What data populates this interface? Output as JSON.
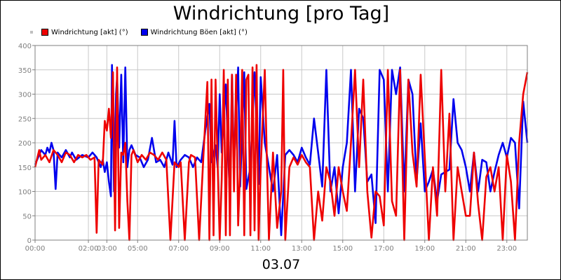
{
  "chart_data": {
    "type": "line",
    "title": "Windrichtung [pro Tag]",
    "date_label": "03.07",
    "ylim": [
      0,
      400
    ],
    "y_ticks": [
      0,
      50,
      100,
      150,
      200,
      250,
      300,
      350,
      400
    ],
    "xlim": [
      0,
      24
    ],
    "x_ticks": [
      {
        "x": 0,
        "label": "00:00"
      },
      {
        "x": 2.6,
        "label": "02:00"
      },
      {
        "x": 3.5,
        "label": "03:00"
      },
      {
        "x": 5,
        "label": "05:00"
      },
      {
        "x": 7,
        "label": "07:00"
      },
      {
        "x": 9,
        "label": "09:00"
      },
      {
        "x": 11,
        "label": "11:00"
      },
      {
        "x": 13,
        "label": "13:00"
      },
      {
        "x": 15,
        "label": "15:00"
      },
      {
        "x": 17,
        "label": "17:00"
      },
      {
        "x": 19,
        "label": "19:00"
      },
      {
        "x": 21,
        "label": "21:00"
      },
      {
        "x": 23,
        "label": "23:00"
      }
    ],
    "grid": true,
    "legend_position": "top-left",
    "series": [
      {
        "name": "Windrichtung Böen [akt] (°)",
        "color": "#0000ee",
        "points": [
          [
            0,
            155
          ],
          [
            0.3,
            185
          ],
          [
            0.5,
            175
          ],
          [
            0.6,
            190
          ],
          [
            0.7,
            180
          ],
          [
            0.8,
            200
          ],
          [
            0.9,
            185
          ],
          [
            1.0,
            105
          ],
          [
            1.1,
            180
          ],
          [
            1.3,
            170
          ],
          [
            1.5,
            185
          ],
          [
            1.7,
            170
          ],
          [
            1.8,
            180
          ],
          [
            2.0,
            165
          ],
          [
            2.3,
            175
          ],
          [
            2.6,
            170
          ],
          [
            2.8,
            180
          ],
          [
            3.0,
            170
          ],
          [
            3.2,
            150
          ],
          [
            3.3,
            165
          ],
          [
            3.4,
            140
          ],
          [
            3.5,
            160
          ],
          [
            3.6,
            120
          ],
          [
            3.7,
            90
          ],
          [
            3.75,
            360
          ],
          [
            3.85,
            100
          ],
          [
            3.95,
            300
          ],
          [
            4.0,
            335
          ],
          [
            4.1,
            190
          ],
          [
            4.2,
            340
          ],
          [
            4.3,
            160
          ],
          [
            4.4,
            355
          ],
          [
            4.5,
            150
          ],
          [
            4.6,
            185
          ],
          [
            4.7,
            195
          ],
          [
            4.9,
            175
          ],
          [
            5.1,
            170
          ],
          [
            5.3,
            150
          ],
          [
            5.5,
            165
          ],
          [
            5.7,
            210
          ],
          [
            5.9,
            160
          ],
          [
            6.1,
            165
          ],
          [
            6.3,
            150
          ],
          [
            6.5,
            180
          ],
          [
            6.7,
            155
          ],
          [
            6.8,
            245
          ],
          [
            6.9,
            150
          ],
          [
            7.1,
            165
          ],
          [
            7.3,
            175
          ],
          [
            7.5,
            170
          ],
          [
            7.7,
            150
          ],
          [
            7.9,
            170
          ],
          [
            8.1,
            160
          ],
          [
            8.3,
            225
          ],
          [
            8.5,
            280
          ],
          [
            8.6,
            160
          ],
          [
            8.8,
            195
          ],
          [
            8.9,
            150
          ],
          [
            9.0,
            300
          ],
          [
            9.1,
            180
          ],
          [
            9.3,
            320
          ],
          [
            9.5,
            80
          ],
          [
            9.6,
            340
          ],
          [
            9.7,
            150
          ],
          [
            9.9,
            355
          ],
          [
            10.0,
            110
          ],
          [
            10.2,
            345
          ],
          [
            10.3,
            105
          ],
          [
            10.5,
            150
          ],
          [
            10.7,
            345
          ],
          [
            10.9,
            115
          ],
          [
            11.0,
            335
          ],
          [
            11.2,
            200
          ],
          [
            11.4,
            150
          ],
          [
            11.6,
            100
          ],
          [
            11.8,
            175
          ],
          [
            12.0,
            10
          ],
          [
            12.2,
            175
          ],
          [
            12.4,
            185
          ],
          [
            12.6,
            175
          ],
          [
            12.8,
            160
          ],
          [
            13.0,
            190
          ],
          [
            13.2,
            170
          ],
          [
            13.4,
            155
          ],
          [
            13.6,
            250
          ],
          [
            13.8,
            180
          ],
          [
            14.0,
            110
          ],
          [
            14.2,
            350
          ],
          [
            14.4,
            100
          ],
          [
            14.6,
            150
          ],
          [
            14.8,
            55
          ],
          [
            15.0,
            150
          ],
          [
            15.2,
            200
          ],
          [
            15.4,
            350
          ],
          [
            15.6,
            100
          ],
          [
            15.8,
            270
          ],
          [
            16.0,
            250
          ],
          [
            16.2,
            120
          ],
          [
            16.4,
            135
          ],
          [
            16.6,
            35
          ],
          [
            16.8,
            350
          ],
          [
            17.0,
            330
          ],
          [
            17.2,
            100
          ],
          [
            17.4,
            350
          ],
          [
            17.6,
            300
          ],
          [
            17.8,
            355
          ],
          [
            18.0,
            100
          ],
          [
            18.2,
            330
          ],
          [
            18.4,
            300
          ],
          [
            18.6,
            120
          ],
          [
            18.8,
            240
          ],
          [
            19.0,
            100
          ],
          [
            19.2,
            120
          ],
          [
            19.4,
            145
          ],
          [
            19.6,
            80
          ],
          [
            19.8,
            135
          ],
          [
            20.0,
            140
          ],
          [
            20.2,
            145
          ],
          [
            20.4,
            290
          ],
          [
            20.6,
            200
          ],
          [
            20.8,
            185
          ],
          [
            21.0,
            150
          ],
          [
            21.2,
            100
          ],
          [
            21.4,
            180
          ],
          [
            21.6,
            100
          ],
          [
            21.8,
            165
          ],
          [
            22.0,
            160
          ],
          [
            22.2,
            100
          ],
          [
            22.4,
            140
          ],
          [
            22.6,
            175
          ],
          [
            22.8,
            200
          ],
          [
            23.0,
            170
          ],
          [
            23.2,
            210
          ],
          [
            23.4,
            200
          ],
          [
            23.6,
            65
          ],
          [
            23.8,
            285
          ],
          [
            24.0,
            200
          ]
        ]
      },
      {
        "name": "Windrichtung [akt] (°)",
        "color": "#ee0000",
        "points": [
          [
            0,
            150
          ],
          [
            0.2,
            185
          ],
          [
            0.3,
            165
          ],
          [
            0.5,
            175
          ],
          [
            0.7,
            160
          ],
          [
            0.9,
            185
          ],
          [
            1.1,
            175
          ],
          [
            1.3,
            160
          ],
          [
            1.5,
            180
          ],
          [
            1.7,
            175
          ],
          [
            1.9,
            160
          ],
          [
            2.1,
            175
          ],
          [
            2.3,
            170
          ],
          [
            2.5,
            175
          ],
          [
            2.7,
            165
          ],
          [
            2.9,
            170
          ],
          [
            3.0,
            15
          ],
          [
            3.1,
            165
          ],
          [
            3.2,
            160
          ],
          [
            3.3,
            155
          ],
          [
            3.4,
            245
          ],
          [
            3.5,
            225
          ],
          [
            3.6,
            270
          ],
          [
            3.7,
            210
          ],
          [
            3.8,
            345
          ],
          [
            3.9,
            20
          ],
          [
            4.0,
            355
          ],
          [
            4.1,
            25
          ],
          [
            4.2,
            180
          ],
          [
            4.3,
            175
          ],
          [
            4.4,
            200
          ],
          [
            4.5,
            80
          ],
          [
            4.6,
            0
          ],
          [
            4.7,
            175
          ],
          [
            4.8,
            185
          ],
          [
            5.0,
            160
          ],
          [
            5.2,
            175
          ],
          [
            5.4,
            165
          ],
          [
            5.6,
            180
          ],
          [
            5.8,
            175
          ],
          [
            6.0,
            165
          ],
          [
            6.2,
            180
          ],
          [
            6.4,
            165
          ],
          [
            6.6,
            0
          ],
          [
            6.8,
            160
          ],
          [
            7.0,
            150
          ],
          [
            7.1,
            160
          ],
          [
            7.3,
            0
          ],
          [
            7.5,
            160
          ],
          [
            7.6,
            175
          ],
          [
            7.8,
            170
          ],
          [
            8.0,
            0
          ],
          [
            8.2,
            165
          ],
          [
            8.4,
            325
          ],
          [
            8.5,
            0
          ],
          [
            8.6,
            330
          ],
          [
            8.7,
            10
          ],
          [
            8.8,
            330
          ],
          [
            8.9,
            160
          ],
          [
            9.0,
            0
          ],
          [
            9.1,
            125
          ],
          [
            9.2,
            350
          ],
          [
            9.3,
            10
          ],
          [
            9.4,
            330
          ],
          [
            9.5,
            10
          ],
          [
            9.6,
            340
          ],
          [
            9.7,
            100
          ],
          [
            9.8,
            340
          ],
          [
            9.9,
            30
          ],
          [
            10.0,
            150
          ],
          [
            10.1,
            350
          ],
          [
            10.2,
            10
          ],
          [
            10.3,
            330
          ],
          [
            10.4,
            340
          ],
          [
            10.5,
            10
          ],
          [
            10.6,
            355
          ],
          [
            10.7,
            20
          ],
          [
            10.8,
            360
          ],
          [
            10.9,
            0
          ],
          [
            11.0,
            150
          ],
          [
            11.2,
            350
          ],
          [
            11.3,
            170
          ],
          [
            11.4,
            0
          ],
          [
            11.6,
            180
          ],
          [
            11.8,
            25
          ],
          [
            12.0,
            100
          ],
          [
            12.1,
            350
          ],
          [
            12.2,
            0
          ],
          [
            12.4,
            150
          ],
          [
            12.6,
            170
          ],
          [
            12.8,
            155
          ],
          [
            13.0,
            175
          ],
          [
            13.2,
            160
          ],
          [
            13.4,
            150
          ],
          [
            13.6,
            0
          ],
          [
            13.8,
            100
          ],
          [
            14.0,
            40
          ],
          [
            14.2,
            150
          ],
          [
            14.4,
            120
          ],
          [
            14.6,
            50
          ],
          [
            14.8,
            150
          ],
          [
            15.0,
            100
          ],
          [
            15.2,
            60
          ],
          [
            15.4,
            200
          ],
          [
            15.6,
            350
          ],
          [
            15.8,
            150
          ],
          [
            16.0,
            330
          ],
          [
            16.2,
            100
          ],
          [
            16.4,
            5
          ],
          [
            16.6,
            100
          ],
          [
            16.8,
            90
          ],
          [
            17.0,
            30
          ],
          [
            17.2,
            350
          ],
          [
            17.4,
            80
          ],
          [
            17.6,
            50
          ],
          [
            17.8,
            350
          ],
          [
            18.0,
            0
          ],
          [
            18.2,
            330
          ],
          [
            18.4,
            180
          ],
          [
            18.6,
            110
          ],
          [
            18.8,
            340
          ],
          [
            19.0,
            170
          ],
          [
            19.2,
            0
          ],
          [
            19.4,
            150
          ],
          [
            19.6,
            50
          ],
          [
            19.8,
            350
          ],
          [
            20.0,
            100
          ],
          [
            20.2,
            260
          ],
          [
            20.4,
            0
          ],
          [
            20.6,
            150
          ],
          [
            20.8,
            100
          ],
          [
            21.0,
            50
          ],
          [
            21.2,
            50
          ],
          [
            21.4,
            180
          ],
          [
            21.6,
            75
          ],
          [
            21.8,
            0
          ],
          [
            22.0,
            130
          ],
          [
            22.2,
            150
          ],
          [
            22.4,
            100
          ],
          [
            22.6,
            150
          ],
          [
            22.8,
            0
          ],
          [
            23.0,
            175
          ],
          [
            23.2,
            120
          ],
          [
            23.4,
            0
          ],
          [
            23.6,
            200
          ],
          [
            23.8,
            300
          ],
          [
            24.0,
            345
          ]
        ]
      }
    ]
  },
  "legend": {
    "items": [
      {
        "label": "Windrichtung [akt] (°)",
        "color": "#ee0000"
      },
      {
        "label": "Windrichtung Böen [akt] (°)",
        "color": "#0000ee"
      }
    ]
  }
}
